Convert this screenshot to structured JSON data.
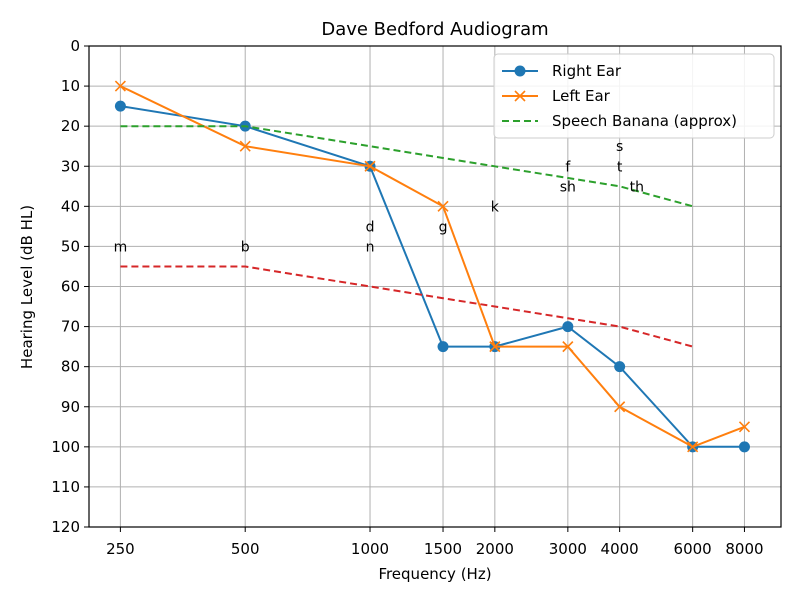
{
  "chart_data": {
    "type": "line",
    "title": "Dave Bedford Audiogram",
    "xlabel": "Frequency (Hz)",
    "ylabel": "Hearing Level (dB HL)",
    "x_scale": "log",
    "xlim": [
      210,
      9800
    ],
    "ylim": [
      120,
      0
    ],
    "y_inverted": true,
    "grid": true,
    "legend_position": "top-right",
    "x_ticks": [
      250,
      500,
      1000,
      1500,
      2000,
      3000,
      4000,
      6000,
      8000
    ],
    "x_tick_labels": [
      "250",
      "500",
      "1000",
      "1500",
      "2000",
      "3000",
      "4000",
      "6000",
      "8000"
    ],
    "y_ticks": [
      0,
      10,
      20,
      30,
      40,
      50,
      60,
      70,
      80,
      90,
      100,
      110,
      120
    ],
    "y_tick_labels": [
      "0",
      "10",
      "20",
      "30",
      "40",
      "50",
      "60",
      "70",
      "80",
      "90",
      "100",
      "110",
      "120"
    ],
    "series": [
      {
        "name": "Right Ear",
        "color": "#1f77b4",
        "style": "solid",
        "marker": "circle",
        "x": [
          250,
          500,
          1000,
          1500,
          2000,
          3000,
          4000,
          6000,
          8000
        ],
        "y": [
          15,
          20,
          30,
          75,
          75,
          70,
          80,
          100,
          100
        ]
      },
      {
        "name": "Left Ear",
        "color": "#ff7f0e",
        "style": "solid",
        "marker": "x",
        "x": [
          250,
          500,
          1000,
          1500,
          2000,
          3000,
          4000,
          6000,
          8000
        ],
        "y": [
          10,
          25,
          30,
          40,
          75,
          75,
          90,
          100,
          95
        ]
      },
      {
        "name": "Speech Banana (approx)",
        "color": "#2ca02c",
        "style": "dashed",
        "marker": "none",
        "x": [
          250,
          500,
          1000,
          2000,
          4000,
          6000
        ],
        "y": [
          20,
          20,
          25,
          30,
          35,
          40
        ]
      },
      {
        "name": "",
        "color": "#d62728",
        "style": "dashed",
        "marker": "none",
        "x": [
          250,
          500,
          1000,
          2000,
          4000,
          6000
        ],
        "y": [
          55,
          55,
          60,
          65,
          70,
          75
        ]
      }
    ],
    "legend": [
      "Right Ear",
      "Left Ear",
      "Speech Banana (approx)"
    ],
    "annotations": [
      {
        "text": "m",
        "x": 250,
        "y": 50
      },
      {
        "text": "b",
        "x": 500,
        "y": 50
      },
      {
        "text": "d",
        "x": 1000,
        "y": 45
      },
      {
        "text": "n",
        "x": 1000,
        "y": 50
      },
      {
        "text": "g",
        "x": 1500,
        "y": 45
      },
      {
        "text": "k",
        "x": 2000,
        "y": 40
      },
      {
        "text": "f",
        "x": 3000,
        "y": 30
      },
      {
        "text": "sh",
        "x": 3000,
        "y": 35
      },
      {
        "text": "s",
        "x": 4000,
        "y": 25
      },
      {
        "text": "t",
        "x": 4000,
        "y": 30
      },
      {
        "text": "th",
        "x": 4400,
        "y": 35
      }
    ]
  }
}
